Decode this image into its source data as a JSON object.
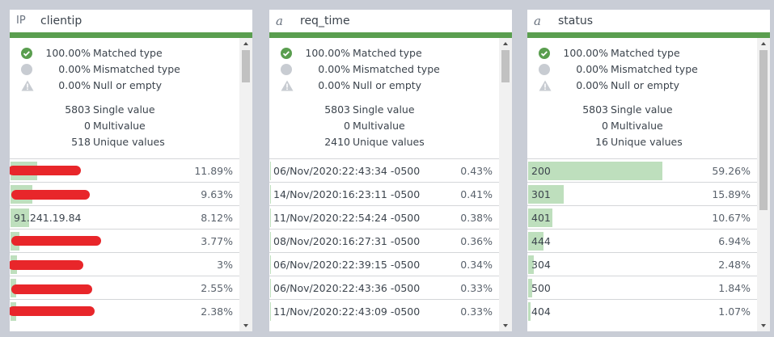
{
  "panels": [
    {
      "type_icon": "IP",
      "name": "clientip",
      "stats": [
        {
          "value": "100.00%",
          "label": "Matched type"
        },
        {
          "value": "0.00%",
          "label": "Mismatched type"
        },
        {
          "value": "0.00%",
          "label": "Null or empty"
        }
      ],
      "counts": [
        {
          "value": 5803,
          "label": "Single value"
        },
        {
          "value": 0,
          "label": "Multivalue"
        },
        {
          "value": 518,
          "label": "Unique values"
        }
      ],
      "rows": [
        {
          "value": null,
          "percent": 11.89,
          "percent_label": "11.89%"
        },
        {
          "value": null,
          "percent": 9.63,
          "percent_label": "9.63%"
        },
        {
          "value": "91.241.19.84",
          "percent": 8.12,
          "percent_label": "8.12%"
        },
        {
          "value": null,
          "percent": 3.77,
          "percent_label": "3.77%"
        },
        {
          "value": null,
          "percent": 3,
          "percent_label": "3%"
        },
        {
          "value": null,
          "percent": 2.55,
          "percent_label": "2.55%"
        },
        {
          "value": null,
          "percent": 2.38,
          "percent_label": "2.38%"
        }
      ]
    },
    {
      "type_icon": "a",
      "name": "req_time",
      "stats": [
        {
          "value": "100.00%",
          "label": "Matched type"
        },
        {
          "value": "0.00%",
          "label": "Mismatched type"
        },
        {
          "value": "0.00%",
          "label": "Null or empty"
        }
      ],
      "counts": [
        {
          "value": 5803,
          "label": "Single value"
        },
        {
          "value": 0,
          "label": "Multivalue"
        },
        {
          "value": 2410,
          "label": "Unique values"
        }
      ],
      "rows": [
        {
          "value": "06/Nov/2020:22:43:34 -0500",
          "percent": 0.43,
          "percent_label": "0.43%"
        },
        {
          "value": "14/Nov/2020:16:23:11 -0500",
          "percent": 0.41,
          "percent_label": "0.41%"
        },
        {
          "value": "11/Nov/2020:22:54:24 -0500",
          "percent": 0.38,
          "percent_label": "0.38%"
        },
        {
          "value": "08/Nov/2020:16:27:31 -0500",
          "percent": 0.36,
          "percent_label": "0.36%"
        },
        {
          "value": "06/Nov/2020:22:39:15 -0500",
          "percent": 0.34,
          "percent_label": "0.34%"
        },
        {
          "value": "06/Nov/2020:22:43:36 -0500",
          "percent": 0.33,
          "percent_label": "0.33%"
        },
        {
          "value": "11/Nov/2020:22:43:09 -0500",
          "percent": 0.33,
          "percent_label": "0.33%"
        }
      ]
    },
    {
      "type_icon": "a",
      "name": "status",
      "stats": [
        {
          "value": "100.00%",
          "label": "Matched type"
        },
        {
          "value": "0.00%",
          "label": "Mismatched type"
        },
        {
          "value": "0.00%",
          "label": "Null or empty"
        }
      ],
      "counts": [
        {
          "value": 5803,
          "label": "Single value"
        },
        {
          "value": 0,
          "label": "Multivalue"
        },
        {
          "value": 16,
          "label": "Unique values"
        }
      ],
      "rows": [
        {
          "value": "200",
          "percent": 59.26,
          "percent_label": "59.26%"
        },
        {
          "value": "301",
          "percent": 15.89,
          "percent_label": "15.89%"
        },
        {
          "value": "401",
          "percent": 10.67,
          "percent_label": "10.67%"
        },
        {
          "value": "444",
          "percent": 6.94,
          "percent_label": "6.94%"
        },
        {
          "value": "304",
          "percent": 2.48,
          "percent_label": "2.48%"
        },
        {
          "value": "500",
          "percent": 1.84,
          "percent_label": "1.84%"
        },
        {
          "value": "404",
          "percent": 1.07,
          "percent_label": "1.07%"
        }
      ]
    }
  ]
}
